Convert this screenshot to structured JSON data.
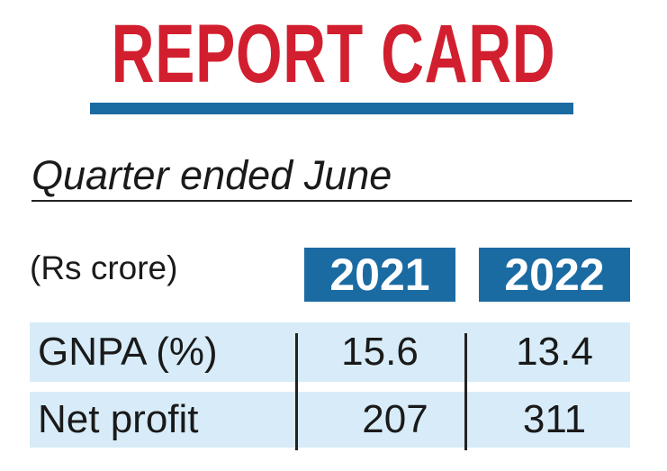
{
  "header": {
    "title": "REPORT CARD",
    "subtitle": "Quarter ended June"
  },
  "table": {
    "columns": [
      "(Rs crore)",
      "2021",
      "2022"
    ],
    "rows": [
      [
        "GNPA (%)",
        "15.6",
        "13.4"
      ],
      [
        "Net profit",
        "207",
        "311"
      ]
    ]
  }
}
